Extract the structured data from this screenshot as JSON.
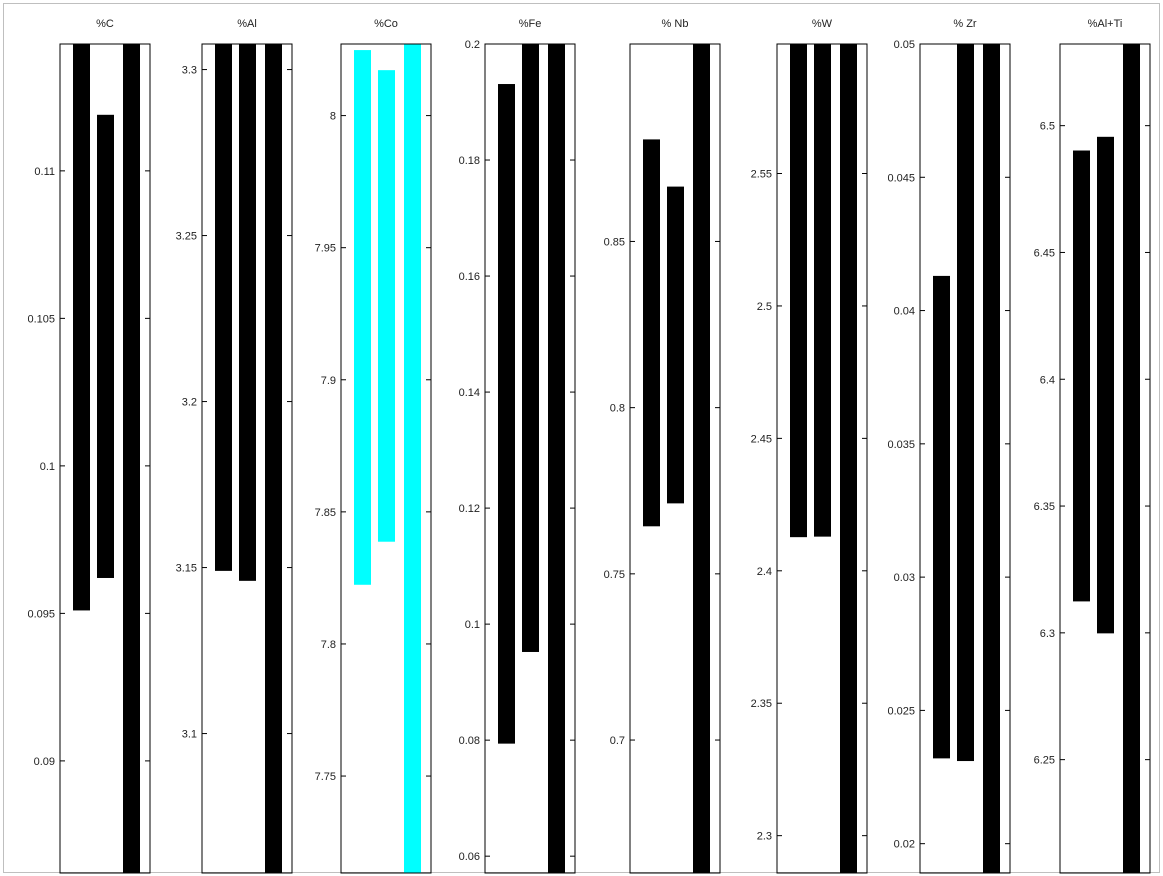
{
  "chart_data": [
    {
      "type": "bar",
      "title": "%C",
      "ylim": [
        0.0862,
        0.1143
      ],
      "ticks": [
        0.09,
        0.095,
        0.1,
        0.105,
        0.11
      ],
      "tick_labels": [
        "0.09",
        "0.095",
        "0.1",
        "0.105",
        "0.11"
      ],
      "bars": [
        {
          "low": 0.0951,
          "high": 0.1143,
          "color": "#000000"
        },
        {
          "low": 0.0962,
          "high": 0.1119,
          "color": "#000000"
        },
        {
          "low": 0.0862,
          "high": 0.1143,
          "color": "#000000"
        }
      ]
    },
    {
      "type": "bar",
      "title": "%Al",
      "ylim": [
        3.058,
        3.3077
      ],
      "ticks": [
        3.1,
        3.15,
        3.2,
        3.25,
        3.3
      ],
      "tick_labels": [
        "3.1",
        "3.15",
        "3.2",
        "3.25",
        "3.3"
      ],
      "bars": [
        {
          "low": 3.149,
          "high": 3.3077,
          "color": "#000000"
        },
        {
          "low": 3.146,
          "high": 3.3077,
          "color": "#000000"
        },
        {
          "low": 3.058,
          "high": 3.3077,
          "color": "#000000"
        }
      ]
    },
    {
      "type": "bar",
      "title": "%Co",
      "ylim": [
        7.7133,
        8.0271
      ],
      "ticks": [
        7.75,
        7.8,
        7.85,
        7.9,
        7.95,
        8.0
      ],
      "tick_labels": [
        "7.75",
        "7.8",
        "7.85",
        "7.9",
        "7.95",
        "8"
      ],
      "bars": [
        {
          "low": 7.8224,
          "high": 8.0248,
          "color": "#00ffff"
        },
        {
          "low": 7.8387,
          "high": 8.0172,
          "color": "#00ffff"
        },
        {
          "low": 7.7133,
          "high": 8.0271,
          "color": "#00ffff"
        }
      ]
    },
    {
      "type": "bar",
      "title": "%Fe",
      "ylim": [
        0.0571,
        0.2
      ],
      "ticks": [
        0.06,
        0.08,
        0.1,
        0.12,
        0.14,
        0.16,
        0.18,
        0.2
      ],
      "tick_labels": [
        "0.06",
        "0.08",
        "0.1",
        "0.12",
        "0.14",
        "0.16",
        "0.18",
        "0.2"
      ],
      "bars": [
        {
          "low": 0.0794,
          "high": 0.1931,
          "color": "#000000"
        },
        {
          "low": 0.0952,
          "high": 0.2,
          "color": "#000000"
        },
        {
          "low": 0.0571,
          "high": 0.2,
          "color": "#000000"
        }
      ]
    },
    {
      "type": "bar",
      "title": "% Nb",
      "ylim": [
        0.66,
        0.9094
      ],
      "ticks": [
        0.7,
        0.75,
        0.8,
        0.85
      ],
      "tick_labels": [
        "0.7",
        "0.75",
        "0.8",
        "0.85"
      ],
      "bars": [
        {
          "low": 0.7643,
          "high": 0.8807,
          "color": "#000000"
        },
        {
          "low": 0.7712,
          "high": 0.8665,
          "color": "#000000"
        },
        {
          "low": 0.66,
          "high": 0.9094,
          "color": "#000000"
        }
      ]
    },
    {
      "type": "bar",
      "title": "%W",
      "ylim": [
        2.2859,
        2.5989
      ],
      "ticks": [
        2.3,
        2.35,
        2.4,
        2.45,
        2.5,
        2.55
      ],
      "tick_labels": [
        "2.3",
        "2.35",
        "2.4",
        "2.45",
        "2.5",
        "2.55"
      ],
      "bars": [
        {
          "low": 2.4127,
          "high": 2.5989,
          "color": "#000000"
        },
        {
          "low": 2.4129,
          "high": 2.5989,
          "color": "#000000"
        },
        {
          "low": 2.2859,
          "high": 2.5989,
          "color": "#000000"
        }
      ]
    },
    {
      "type": "bar",
      "title": "%  Zr",
      "ylim": [
        0.0189,
        0.05
      ],
      "ticks": [
        0.02,
        0.025,
        0.03,
        0.035,
        0.04,
        0.045,
        0.05
      ],
      "tick_labels": [
        "0.02",
        "0.025",
        "0.03",
        "0.035",
        "0.04",
        "0.045",
        "0.05"
      ],
      "bars": [
        {
          "low": 0.0232,
          "high": 0.0413,
          "color": "#000000"
        },
        {
          "low": 0.0231,
          "high": 0.05,
          "color": "#000000"
        },
        {
          "low": 0.0189,
          "high": 0.05,
          "color": "#000000"
        }
      ]
    },
    {
      "type": "bar",
      "title": "%Al+Ti",
      "ylim": [
        6.2053,
        6.5322
      ],
      "ticks": [
        6.25,
        6.3,
        6.35,
        6.4,
        6.45,
        6.5
      ],
      "tick_labels": [
        "6.25",
        "6.3",
        "6.35",
        "6.4",
        "6.45",
        "6.5"
      ],
      "bars": [
        {
          "low": 6.3124,
          "high": 6.4902,
          "color": "#000000"
        },
        {
          "low": 6.2998,
          "high": 6.4956,
          "color": "#000000"
        },
        {
          "low": 6.2053,
          "high": 6.5322,
          "color": "#000000"
        }
      ]
    }
  ]
}
